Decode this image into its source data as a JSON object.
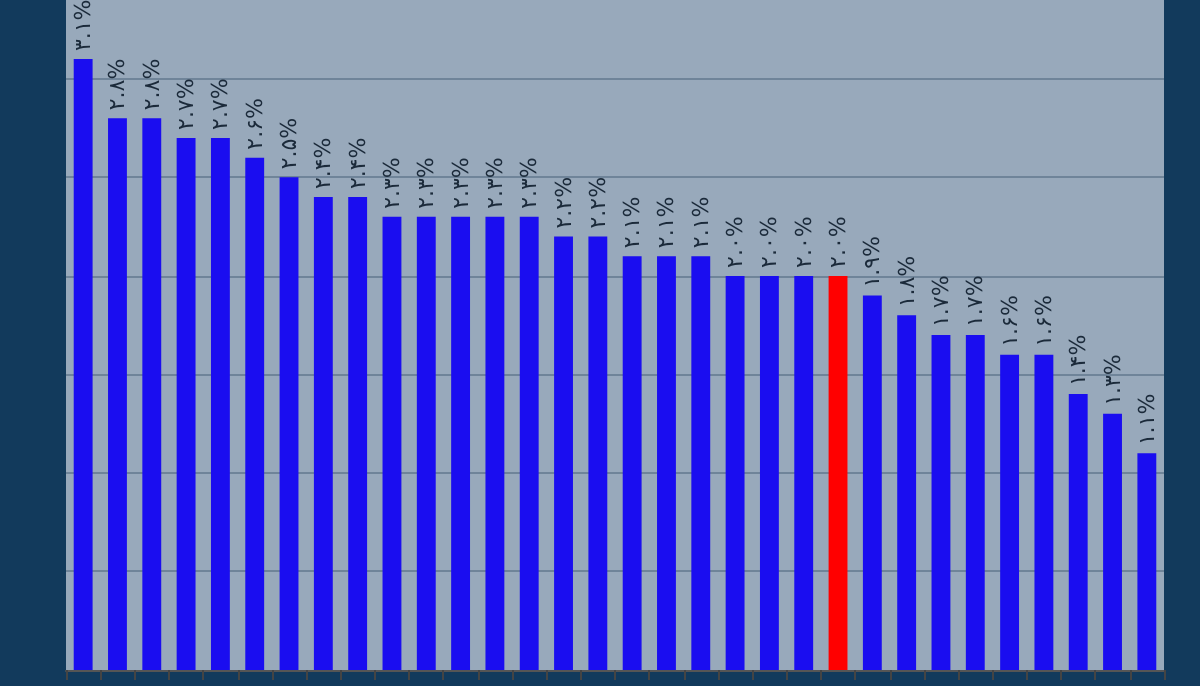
{
  "chart_data": {
    "type": "bar",
    "categories": [
      null,
      null,
      null,
      null,
      null,
      null,
      null,
      null,
      null,
      null,
      null,
      null,
      null,
      null,
      null,
      null,
      null,
      null,
      null,
      null,
      null,
      null,
      null,
      null,
      null,
      null,
      null,
      null,
      null,
      null,
      null,
      null
    ],
    "values": [
      3.1,
      2.8,
      2.8,
      2.7,
      2.7,
      2.6,
      2.5,
      2.4,
      2.4,
      2.3,
      2.3,
      2.3,
      2.3,
      2.3,
      2.2,
      2.2,
      2.1,
      2.1,
      2.1,
      2.0,
      2.0,
      2.0,
      2.0,
      1.9,
      1.8,
      1.7,
      1.7,
      1.6,
      1.6,
      1.4,
      1.3,
      1.1
    ],
    "value_labels": [
      "۳.۱%",
      "۲.۸%",
      "۲.۸%",
      "۲.۷%",
      "۲.۷%",
      "۲.۶%",
      "۲.۵%",
      "۲.۴%",
      "۲.۴%",
      "۲.۳%",
      "۲.۳%",
      "۲.۳%",
      "۲.۳%",
      "۲.۳%",
      "۲.۲%",
      "۲.۲%",
      "۲.۱%",
      "۲.۱%",
      "۲.۱%",
      "۲.۰%",
      "۲.۰%",
      "۲.۰%",
      "۲.۰%",
      "۱.۹%",
      "۱.۸%",
      "۱.۷%",
      "۱.۷%",
      "۱.۶%",
      "۱.۶%",
      "۱.۴%",
      "۱.۳%",
      "۱.۱%"
    ],
    "colors": [
      "#1a0df0",
      "#1a0df0",
      "#1a0df0",
      "#1a0df0",
      "#1a0df0",
      "#1a0df0",
      "#1a0df0",
      "#1a0df0",
      "#1a0df0",
      "#1a0df0",
      "#1a0df0",
      "#1a0df0",
      "#1a0df0",
      "#1a0df0",
      "#1a0df0",
      "#1a0df0",
      "#1a0df0",
      "#1a0df0",
      "#1a0df0",
      "#1a0df0",
      "#1a0df0",
      "#1a0df0",
      "#ff0000",
      "#1a0df0",
      "#1a0df0",
      "#1a0df0",
      "#1a0df0",
      "#1a0df0",
      "#1a0df0",
      "#1a0df0",
      "#1a0df0",
      "#1a0df0"
    ],
    "ylim": [
      0,
      3.4
    ],
    "yticks": [
      {
        "value": 0,
        "label": null
      },
      {
        "value": 0.5,
        "label": null
      },
      {
        "value": 1,
        "label": null
      },
      {
        "value": 1.5,
        "label": null
      },
      {
        "value": 2,
        "label": null
      },
      {
        "value": 2.5,
        "label": null
      },
      {
        "value": 3,
        "label": null
      }
    ],
    "grid": "y"
  }
}
